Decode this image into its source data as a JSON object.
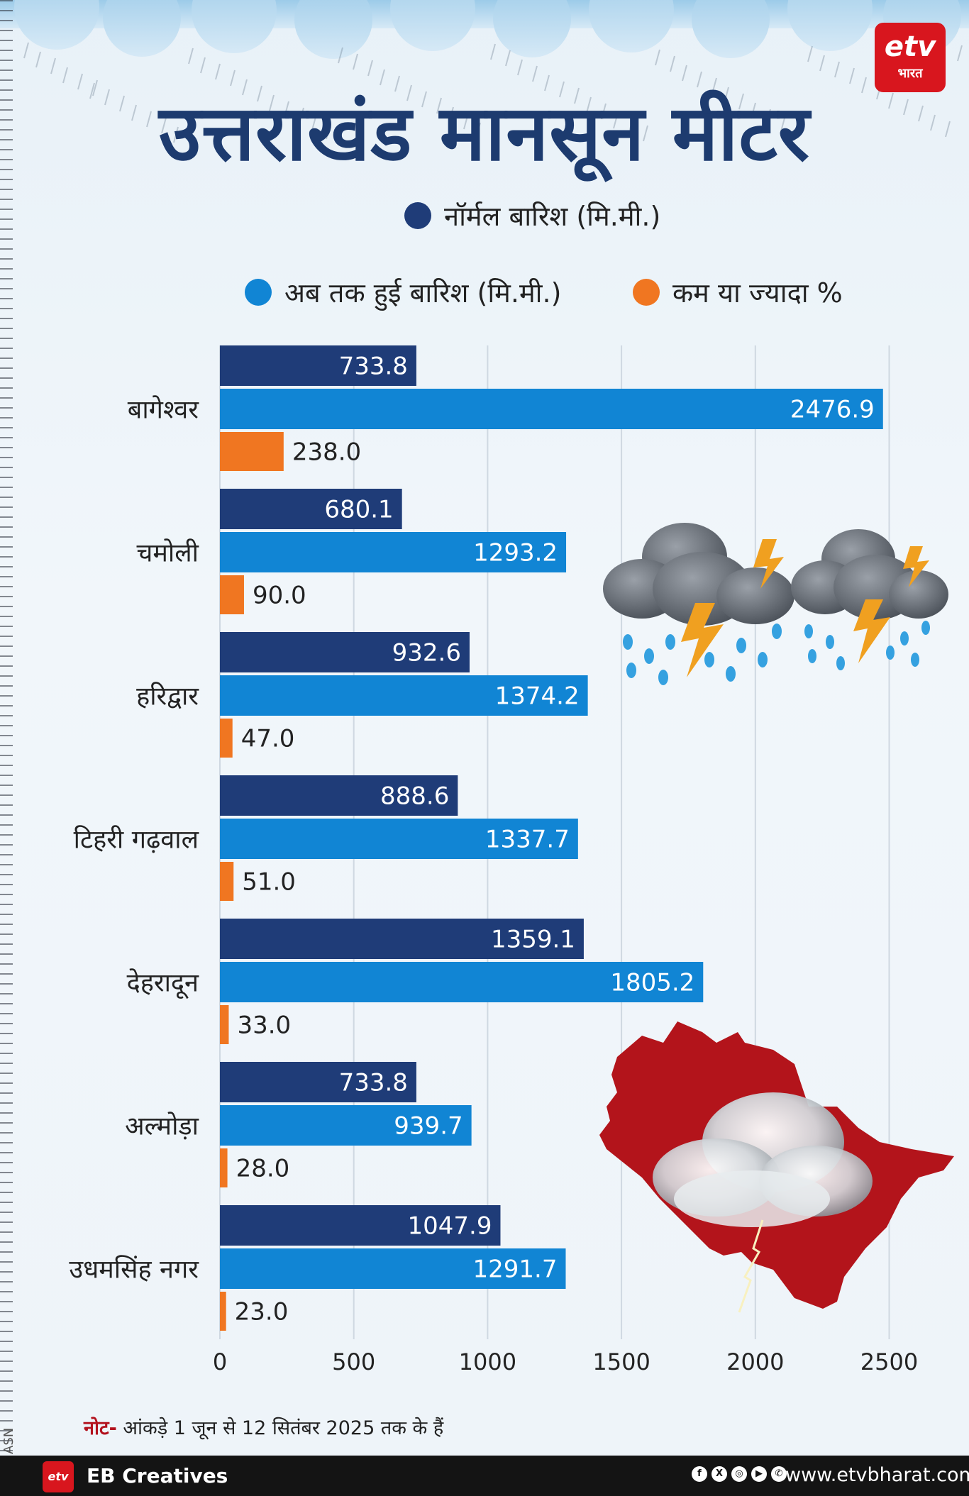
{
  "brand": {
    "logo_text": "etv",
    "logo_sub": "भारत",
    "bottom_logo": "etv",
    "credit": "EB Creatives",
    "website": "www.etvbharat.com",
    "ruler_label": "ASN",
    "social_icons": [
      "facebook-icon",
      "x-icon",
      "instagram-icon",
      "youtube-icon",
      "whatsapp-icon"
    ]
  },
  "note": {
    "label": "नोट-",
    "text": " आंकड़े  1 जून से 12 सितंबर 2025 तक के हैं"
  },
  "colors": {
    "normal": "#1f3c78",
    "actual": "#1185d4",
    "percent": "#f07621",
    "title": "#1d3b6f",
    "grid": "#cfd8e1"
  },
  "chart_data": {
    "type": "bar",
    "orientation": "horizontal",
    "title": "उत्तराखंड मानसून मीटर",
    "categories": [
      "बागेश्वर",
      "चमोली",
      "हरिद्वार",
      "टिहरी गढ़वाल",
      "देहरादून",
      "अल्मोड़ा",
      "उधमसिंह नगर"
    ],
    "series": [
      {
        "name": "नॉर्मल बारिश (मि.मी.)",
        "values": [
          733.8,
          680.1,
          932.6,
          888.6,
          1359.1,
          733.8,
          1047.9
        ]
      },
      {
        "name": "अब तक हुई बारिश (मि.मी.)",
        "values": [
          2476.9,
          1293.2,
          1374.2,
          1337.7,
          1805.2,
          939.7,
          1291.7
        ]
      },
      {
        "name": "कम या ज्यादा %",
        "values": [
          238.0,
          90.0,
          47.0,
          51.0,
          33.0,
          28.0,
          23.0
        ]
      }
    ],
    "xlim": [
      0,
      2500
    ],
    "xticks": [
      0,
      500,
      1000,
      1500,
      2000,
      2500
    ],
    "grid": true,
    "legend_position": "top"
  }
}
